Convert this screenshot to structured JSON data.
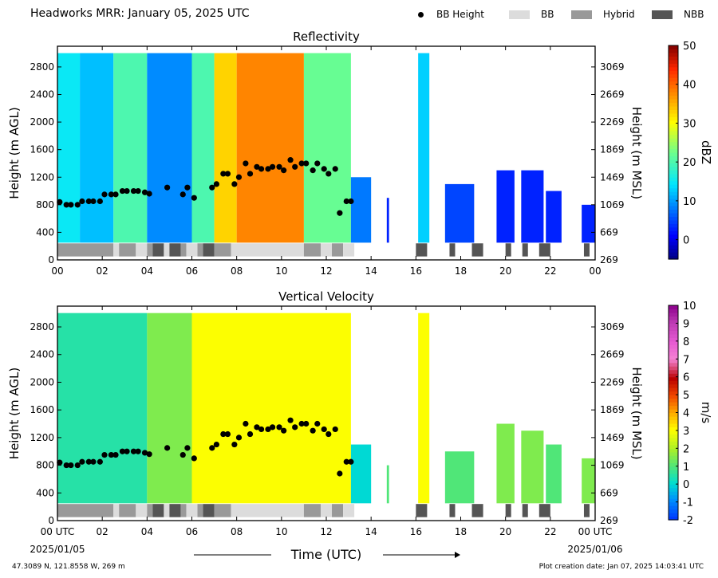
{
  "header": {
    "title": "Headworks MRR:  January 05, 2025 UTC",
    "legend": [
      {
        "label": "BB Height",
        "kind": "dot",
        "color": "#000000"
      },
      {
        "label": "BB",
        "kind": "box",
        "color": "#dcdcdc"
      },
      {
        "label": "Hybrid",
        "kind": "box",
        "color": "#999999"
      },
      {
        "label": "NBB",
        "kind": "box",
        "color": "#555555"
      }
    ]
  },
  "chart_data": [
    {
      "type": "heatmap",
      "title": "Reflectivity",
      "ylabel": "Height (m AGL)",
      "ylabel_right": "Height (m MSL)",
      "yticks": [
        "0",
        "400",
        "800",
        "1200",
        "1600",
        "2000",
        "2400",
        "2800"
      ],
      "yticks_right": [
        "269",
        "669",
        "1069",
        "1469",
        "1869",
        "2269",
        "2669",
        "3069"
      ],
      "xticks": [
        "00",
        "02",
        "04",
        "06",
        "08",
        "10",
        "12",
        "14",
        "16",
        "18",
        "20",
        "22",
        "00"
      ],
      "xlim": [
        0,
        24
      ],
      "ylim": [
        0,
        3100
      ],
      "colorbar": {
        "label": "dBZ",
        "ticks": [
          "0",
          "10",
          "20",
          "30",
          "40",
          "50"
        ],
        "range": [
          -5,
          50
        ]
      },
      "palette": "jet",
      "data_columns": [
        {
          "x0": 0.0,
          "x1": 1.0,
          "top": 3000,
          "value": 15
        },
        {
          "x0": 1.0,
          "x1": 2.5,
          "top": 3000,
          "value": 12
        },
        {
          "x0": 2.5,
          "x1": 4.0,
          "top": 3000,
          "value": 20
        },
        {
          "x0": 4.0,
          "x1": 6.0,
          "top": 3000,
          "value": 9
        },
        {
          "x0": 6.0,
          "x1": 7.0,
          "top": 3000,
          "value": 20
        },
        {
          "x0": 7.0,
          "x1": 8.0,
          "top": 3000,
          "value": 33
        },
        {
          "x0": 8.0,
          "x1": 11.0,
          "top": 3000,
          "value": 38
        },
        {
          "x0": 11.0,
          "x1": 13.1,
          "top": 3000,
          "value": 22
        },
        {
          "x0": 13.1,
          "x1": 14.0,
          "top": 1200,
          "value": 8
        },
        {
          "x0": 14.7,
          "x1": 14.8,
          "top": 900,
          "value": 3
        },
        {
          "x0": 16.1,
          "x1": 16.6,
          "top": 3000,
          "value": 13
        },
        {
          "x0": 17.3,
          "x1": 18.6,
          "top": 1100,
          "value": 5
        },
        {
          "x0": 19.6,
          "x1": 20.4,
          "top": 1300,
          "value": 3
        },
        {
          "x0": 20.7,
          "x1": 21.7,
          "top": 1300,
          "value": 3
        },
        {
          "x0": 21.8,
          "x1": 22.5,
          "top": 1000,
          "value": 3
        },
        {
          "x0": 23.4,
          "x1": 24.0,
          "top": 800,
          "value": 3
        }
      ]
    },
    {
      "type": "heatmap",
      "title": "Vertical Velocity",
      "ylabel": "Height (m AGL)",
      "ylabel_right": "Height (m MSL)",
      "xlabel": "Time (UTC)",
      "yticks": [
        "0",
        "400",
        "800",
        "1200",
        "1600",
        "2000",
        "2400",
        "2800"
      ],
      "yticks_right": [
        "269",
        "669",
        "1069",
        "1469",
        "1869",
        "2269",
        "2669",
        "3069"
      ],
      "xticks": [
        "00 UTC",
        "02",
        "04",
        "06",
        "08",
        "10",
        "12",
        "14",
        "16",
        "18",
        "20",
        "22",
        "00 UTC"
      ],
      "date_left": "2025/01/05",
      "date_right": "2025/01/06",
      "xlim": [
        0,
        24
      ],
      "ylim": [
        0,
        3100
      ],
      "colorbar": {
        "label": "m/s",
        "ticks": [
          "-2",
          "-1",
          "0",
          "1",
          "2",
          "3",
          "4",
          "5",
          "6",
          "7",
          "8",
          "9",
          "10"
        ],
        "range": [
          -2,
          10
        ]
      },
      "palette": "velocity",
      "data_columns": [
        {
          "x0": 0.0,
          "x1": 4.0,
          "top": 3000,
          "value": 0.5
        },
        {
          "x0": 4.0,
          "x1": 6.0,
          "top": 3000,
          "value": 1.5
        },
        {
          "x0": 6.0,
          "x1": 13.1,
          "top": 3000,
          "value": 3
        },
        {
          "x0": 13.1,
          "x1": 14.0,
          "top": 1100,
          "value": 0
        },
        {
          "x0": 14.7,
          "x1": 14.8,
          "top": 800,
          "value": 1
        },
        {
          "x0": 16.1,
          "x1": 16.6,
          "top": 3000,
          "value": 3
        },
        {
          "x0": 17.3,
          "x1": 18.6,
          "top": 1000,
          "value": 1
        },
        {
          "x0": 19.6,
          "x1": 20.4,
          "top": 1400,
          "value": 1.5
        },
        {
          "x0": 20.7,
          "x1": 21.7,
          "top": 1300,
          "value": 1.5
        },
        {
          "x0": 21.8,
          "x1": 22.5,
          "top": 1100,
          "value": 1
        },
        {
          "x0": 23.4,
          "x1": 24.0,
          "top": 900,
          "value": 1.5
        }
      ]
    }
  ],
  "bb_height": {
    "x": [
      0.1,
      0.4,
      0.6,
      0.9,
      1.1,
      1.4,
      1.6,
      1.9,
      2.1,
      2.4,
      2.6,
      2.9,
      3.1,
      3.4,
      3.6,
      3.9,
      4.1,
      4.9,
      5.6,
      5.8,
      6.1,
      6.9,
      7.1,
      7.4,
      7.6,
      7.9,
      8.1,
      8.4,
      8.6,
      8.9,
      9.1,
      9.4,
      9.6,
      9.9,
      10.1,
      10.4,
      10.6,
      10.9,
      11.1,
      11.4,
      11.6,
      11.9,
      12.1,
      12.4,
      12.6,
      12.9,
      13.1
    ],
    "y": [
      840,
      800,
      800,
      800,
      850,
      850,
      850,
      850,
      950,
      950,
      950,
      1000,
      1000,
      1000,
      1000,
      980,
      960,
      1050,
      950,
      1050,
      900,
      1050,
      1100,
      1250,
      1250,
      1100,
      1200,
      1400,
      1250,
      1350,
      1320,
      1320,
      1350,
      1350,
      1300,
      1450,
      1350,
      1400,
      1400,
      1300,
      1400,
      1320,
      1250,
      1320,
      680,
      850,
      850
    ]
  },
  "bb_type": [
    {
      "x0": 0.0,
      "x1": 2.5,
      "type": "Hybrid"
    },
    {
      "x0": 2.5,
      "x1": 2.75,
      "type": "BB"
    },
    {
      "x0": 2.75,
      "x1": 3.5,
      "type": "Hybrid"
    },
    {
      "x0": 3.5,
      "x1": 4.0,
      "type": "BB"
    },
    {
      "x0": 4.0,
      "x1": 4.25,
      "type": "Hybrid"
    },
    {
      "x0": 4.25,
      "x1": 4.75,
      "type": "NBB"
    },
    {
      "x0": 4.75,
      "x1": 5.0,
      "type": "BB"
    },
    {
      "x0": 5.0,
      "x1": 5.5,
      "type": "NBB"
    },
    {
      "x0": 5.5,
      "x1": 5.75,
      "type": "Hybrid"
    },
    {
      "x0": 5.75,
      "x1": 6.25,
      "type": "BB"
    },
    {
      "x0": 6.25,
      "x1": 6.5,
      "type": "Hybrid"
    },
    {
      "x0": 6.5,
      "x1": 7.0,
      "type": "NBB"
    },
    {
      "x0": 7.0,
      "x1": 7.75,
      "type": "Hybrid"
    },
    {
      "x0": 7.75,
      "x1": 11.0,
      "type": "BB"
    },
    {
      "x0": 11.0,
      "x1": 11.75,
      "type": "Hybrid"
    },
    {
      "x0": 11.75,
      "x1": 12.25,
      "type": "BB"
    },
    {
      "x0": 12.25,
      "x1": 12.75,
      "type": "Hybrid"
    },
    {
      "x0": 12.75,
      "x1": 13.25,
      "type": "BB"
    },
    {
      "x0": 16.0,
      "x1": 16.5,
      "type": "NBB"
    },
    {
      "x0": 17.5,
      "x1": 17.75,
      "type": "NBB"
    },
    {
      "x0": 18.5,
      "x1": 19.0,
      "type": "NBB"
    },
    {
      "x0": 20.0,
      "x1": 20.25,
      "type": "NBB"
    },
    {
      "x0": 20.75,
      "x1": 21.0,
      "type": "NBB"
    },
    {
      "x0": 21.5,
      "x1": 22.0,
      "type": "NBB"
    },
    {
      "x0": 23.5,
      "x1": 23.75,
      "type": "NBB"
    }
  ],
  "footer": {
    "location": "47.3089 N, 121.8558 W, 269 m",
    "created": "Plot creation date: Jan 07, 2025 14:03:41 UTC"
  }
}
